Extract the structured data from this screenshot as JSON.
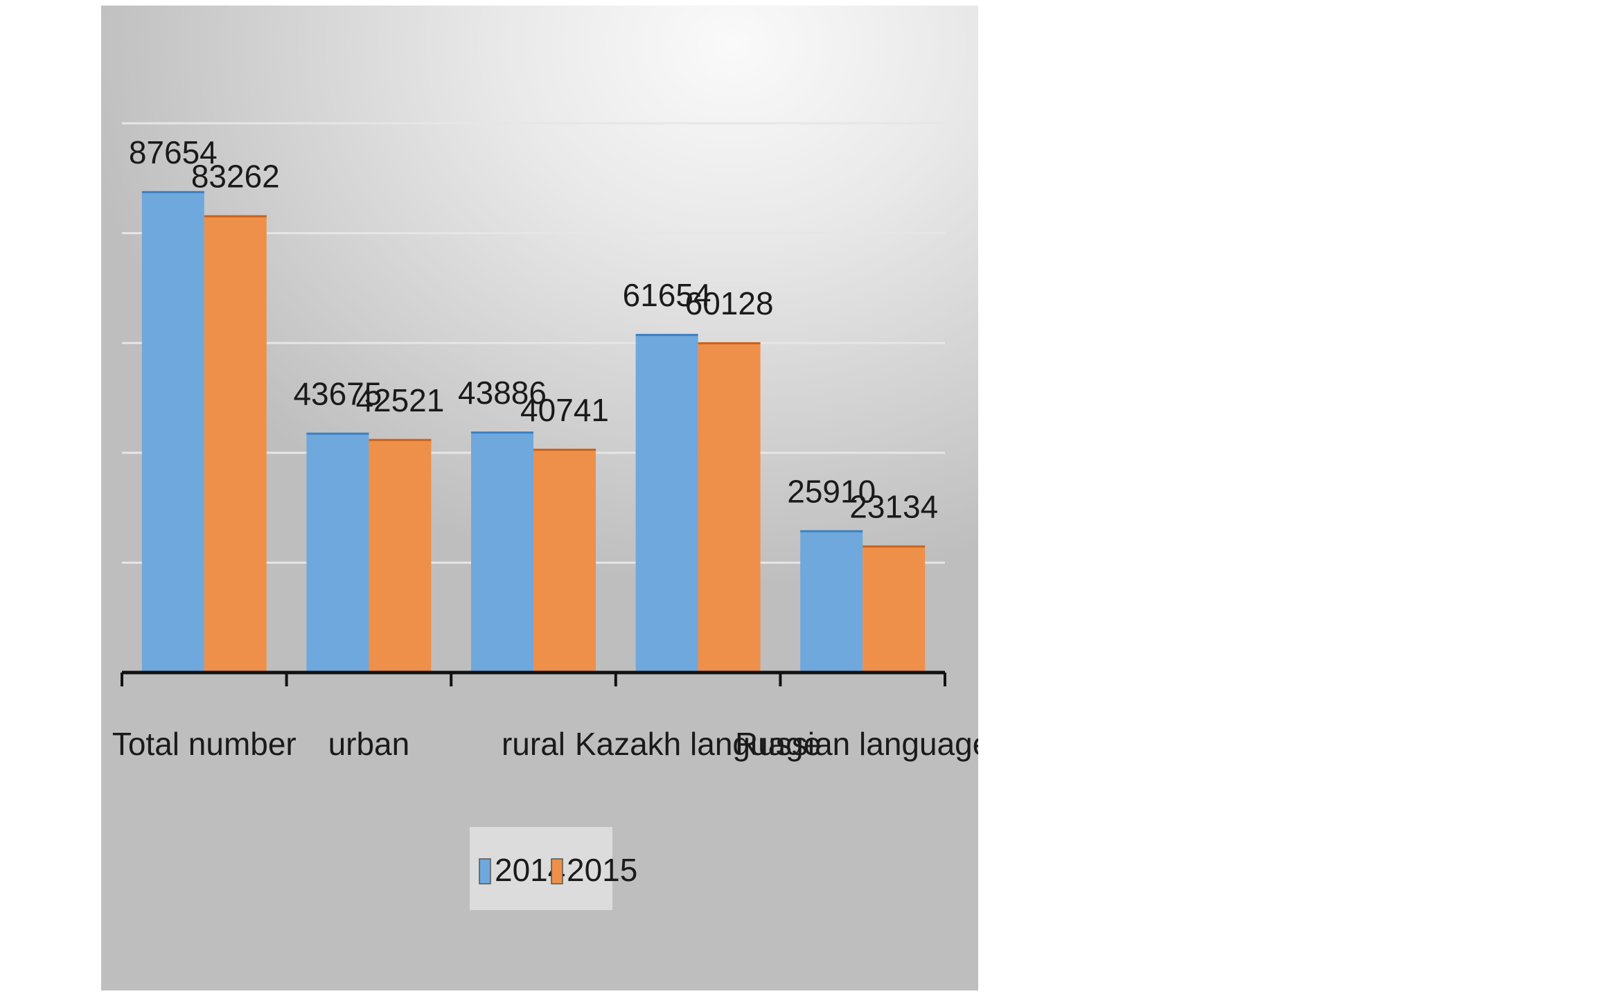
{
  "chart_data": {
    "type": "bar",
    "categories": [
      "Total number",
      "urban",
      "rural",
      "Kazakh language",
      "Russian language"
    ],
    "series": [
      {
        "name": "2014",
        "values": [
          87654,
          43675,
          43886,
          61654,
          25910
        ],
        "color": "#6fa8dc"
      },
      {
        "name": "2015",
        "values": [
          83262,
          42521,
          40741,
          60128,
          23134
        ],
        "color": "#ee904a"
      }
    ],
    "title": "",
    "xlabel": "",
    "ylabel": "",
    "ylim": [
      0,
      100000
    ],
    "grid": true,
    "legend": "bottom-center"
  }
}
